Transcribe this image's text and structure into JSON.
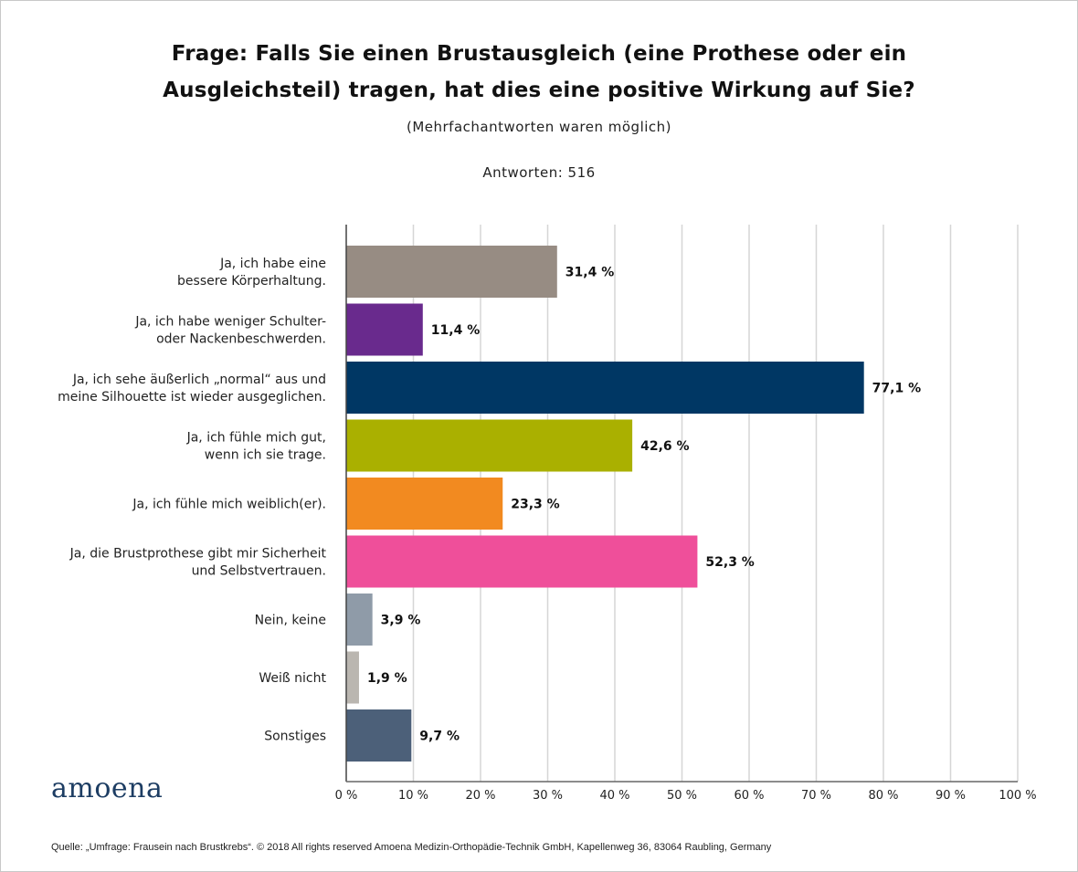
{
  "header": {
    "title_line1": "Frage: Falls Sie einen Brustausgleich (eine Prothese oder ein",
    "title_line2": "Ausgleichsteil) tragen, hat dies eine positive Wirkung auf Sie?",
    "note": "(Mehrfachantworten waren möglich)",
    "responses": "Antworten: 516"
  },
  "logo": {
    "text": "amoena",
    "color": "#1d3d63"
  },
  "footer": {
    "source": "Quelle: „Umfrage: Frausein nach Brustkrebs“. © 2018 All rights reserved Amoena Medizin-Orthopädie-Technik GmbH, Kapellenweg 36, 83064 Raubling, Germany"
  },
  "chart_data": {
    "type": "bar",
    "orientation": "horizontal",
    "title": "Frage: Falls Sie einen Brustausgleich (eine Prothese oder ein Ausgleichsteil) tragen, hat dies eine positive Wirkung auf Sie?",
    "subtitle": "(Mehrfachantworten waren möglich)",
    "xlabel": "",
    "ylabel": "",
    "xlim": [
      0,
      100
    ],
    "grid": true,
    "legend": "none",
    "x_ticks": [
      "0 %",
      "10 %",
      "20 %",
      "30 %",
      "40 %",
      "50 %",
      "60 %",
      "70 %",
      "80 %",
      "90 %",
      "100 %"
    ],
    "categories": [
      [
        "Ja, ich habe eine",
        "bessere Körperhaltung."
      ],
      [
        "Ja, ich habe weniger Schulter-",
        "oder Nackenbeschwerden."
      ],
      [
        "Ja, ich sehe äußerlich „normal“ aus und",
        "meine Silhouette ist wieder ausgeglichen."
      ],
      [
        "Ja, ich fühle mich gut,",
        "wenn ich sie trage."
      ],
      [
        "Ja, ich fühle mich weiblich(er)."
      ],
      [
        "Ja, die Brustprothese gibt mir Sicherheit",
        "und Selbstvertrauen."
      ],
      [
        "Nein, keine"
      ],
      [
        "Weiß nicht"
      ],
      [
        "Sonstiges"
      ]
    ],
    "values": [
      31.4,
      11.4,
      77.1,
      42.6,
      23.3,
      52.3,
      3.9,
      1.9,
      9.7
    ],
    "value_labels": [
      "31,4 %",
      "11,4 %",
      "77,1 %",
      "42,6 %",
      "23,3 %",
      "52,3 %",
      "3,9 %",
      "1,9 %",
      "9,7 %"
    ],
    "colors": [
      "#978c83",
      "#692a8d",
      "#003764",
      "#aab000",
      "#f28a20",
      "#ef4f9a",
      "#8f9ba8",
      "#bab6b0",
      "#4c6079"
    ]
  }
}
